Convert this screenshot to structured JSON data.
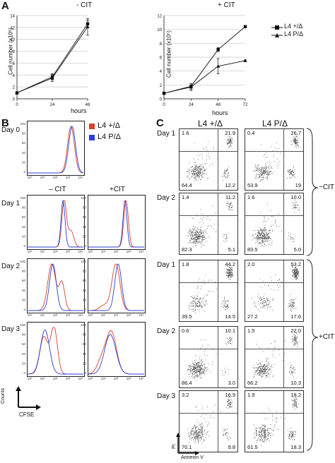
{
  "panels": {
    "A": "A",
    "B": "B",
    "C": "C"
  },
  "panelA": {
    "left_title": "- CIT",
    "right_title": "+ CIT",
    "xlabel": "hours",
    "ylabel": "Cell number (x10⁵)",
    "legend": [
      "L4 +/Δ",
      "L4 P/Δ"
    ],
    "chart_data": [
      {
        "type": "line",
        "title": "- CIT",
        "xlabel": "hours",
        "ylabel": "Cell number (x10⁵)",
        "x_ticks": [
          0,
          24,
          48
        ],
        "y_ticks": [
          0,
          2,
          4,
          6,
          8,
          10,
          12,
          14
        ],
        "xlim": [
          0,
          48
        ],
        "ylim": [
          0,
          14
        ],
        "grid": true,
        "series": [
          {
            "name": "L4 +/Δ",
            "x": [
              0,
              24,
              48
            ],
            "y": [
              1.0,
              3.7,
              12.6
            ],
            "err": [
              0.2,
              0.5,
              0.6
            ]
          },
          {
            "name": "L4 P/Δ",
            "x": [
              0,
              24,
              48
            ],
            "y": [
              1.0,
              3.5,
              12.1
            ],
            "err": [
              0.2,
              0.6,
              1.4
            ]
          }
        ]
      },
      {
        "type": "line",
        "title": "+ CIT",
        "xlabel": "hours",
        "ylabel": "Cell number (x10⁵)",
        "x_ticks": [
          0,
          24,
          48,
          72
        ],
        "y_ticks": [
          0,
          2,
          4,
          6,
          8,
          10,
          12
        ],
        "xlim": [
          0,
          72
        ],
        "ylim": [
          0,
          12
        ],
        "grid": true,
        "legend_position": "right",
        "series": [
          {
            "name": "L4 +/Δ",
            "x": [
              0,
              24,
              48,
              72
            ],
            "y": [
              0.8,
              1.8,
              7.1,
              10.4
            ],
            "err": [
              0.1,
              0.4,
              0.3,
              0.1
            ]
          },
          {
            "name": "L4 P/Δ",
            "x": [
              0,
              24,
              48,
              72
            ],
            "y": [
              0.8,
              1.7,
              4.7,
              5.5
            ],
            "err": [
              0.1,
              0.5,
              1.1,
              0.1
            ]
          }
        ]
      }
    ]
  },
  "panelB": {
    "legend": [
      {
        "label": "L4 +/Δ",
        "color": "#d9402b"
      },
      {
        "label": "L4 P/Δ",
        "color": "#2b3fd9"
      }
    ],
    "col_titles": [
      "– CIT",
      "+CIT"
    ],
    "rows": [
      "Day 0",
      "Day 1",
      "Day 2",
      "Day 3"
    ],
    "y_ticks": [
      "100",
      "80",
      "60",
      "40",
      "20",
      "0"
    ],
    "x_ticks": [
      "10⁰",
      "10¹",
      "10²",
      "10³",
      "10⁴"
    ],
    "axis_y": "Counts",
    "axis_x": "CFSE"
  },
  "panelC": {
    "col_titles": [
      "L4 +/Δ",
      "L4 P/Δ"
    ],
    "row_labels": [
      "Day 1",
      "Day 2",
      "Day 1",
      "Day 2",
      "Day 3"
    ],
    "group_labels": [
      "−CIT",
      "+CIT"
    ],
    "axis_y": "PI",
    "axis_x": "Annexin V",
    "quadrants": [
      [
        {
          "ul": "1.6",
          "ur": "21.9",
          "ll": "64.4",
          "lr": "12.2"
        },
        {
          "ul": "0.4",
          "ur": "26.7",
          "ll": "53.9",
          "lr": "19"
        }
      ],
      [
        {
          "ul": "1.4",
          "ur": "11.2",
          "ll": "82.3",
          "lr": "5.1"
        },
        {
          "ul": "1.6",
          "ur": "10.0",
          "ll": "83.5",
          "lr": "5.0"
        }
      ],
      [
        {
          "ul": "1.8",
          "ur": "44.2",
          "ll": "39.5",
          "lr": "14.5"
        },
        {
          "ul": "2.0",
          "ur": "53.2",
          "ll": "27.2",
          "lr": "17.6"
        }
      ],
      [
        {
          "ul": "0.6",
          "ur": "10.1",
          "ll": "86.4",
          "lr": "3.0"
        },
        {
          "ul": "1.5",
          "ur": "22.0",
          "ll": "66.2",
          "lr": "10.3"
        }
      ],
      [
        {
          "ul": "3.2",
          "ur": "16.9",
          "ll": "70.1",
          "lr": "9.8"
        },
        {
          "ul": "1.9",
          "ur": "18.2",
          "ll": "61.5",
          "lr": "18.3"
        }
      ]
    ]
  }
}
